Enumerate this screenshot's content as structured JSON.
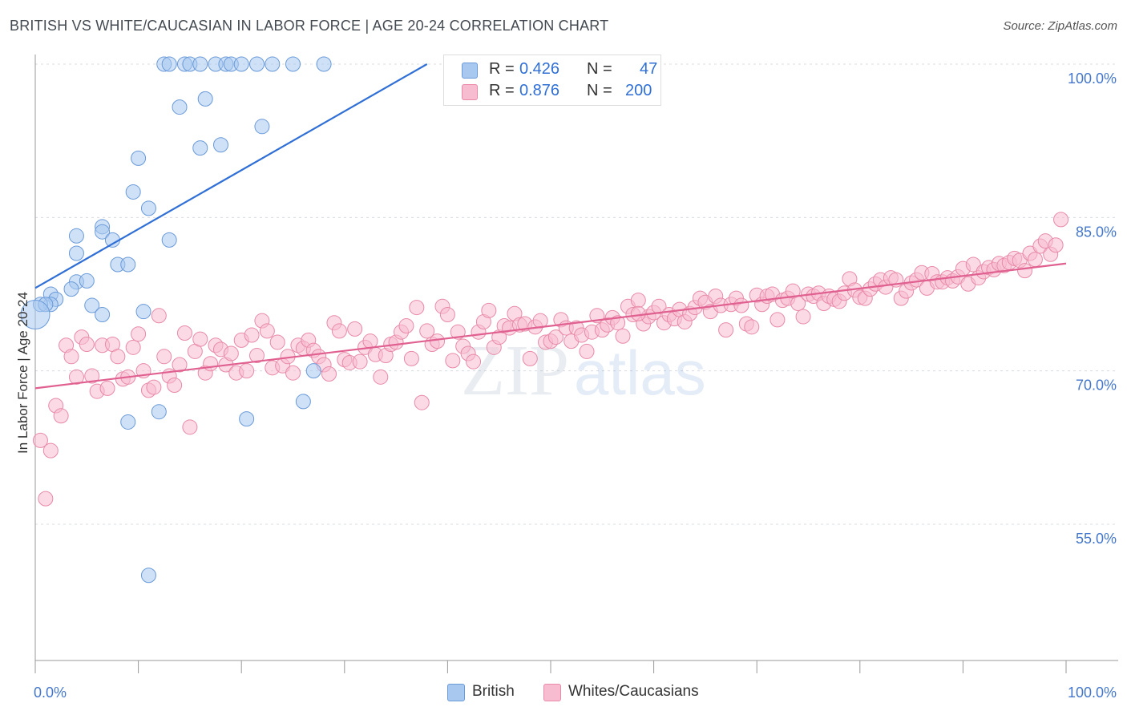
{
  "title": "BRITISH VS WHITE/CAUCASIAN IN LABOR FORCE | AGE 20-24 CORRELATION CHART",
  "source": "Source: ZipAtlas.com",
  "watermark": {
    "zip": "ZIP",
    "atlas": "atlas"
  },
  "legend": {
    "rows": [
      {
        "r_label": "R =",
        "r_value": "0.426",
        "n_label": "N =",
        "n_value": "47",
        "color": "#a8c8f0",
        "border": "#6a9ad8"
      },
      {
        "r_label": "R =",
        "r_value": "0.876",
        "n_label": "N =",
        "n_value": "200",
        "color": "#f8bcd0",
        "border": "#e88aa8"
      }
    ]
  },
  "bottom_legend": [
    {
      "label": "British",
      "color": "#a8c8f0",
      "border": "#6a9ad8"
    },
    {
      "label": "Whites/Caucasians",
      "color": "#f8bcd0",
      "border": "#e88aa8"
    }
  ],
  "chart_data": {
    "type": "scatter",
    "title": "BRITISH VS WHITE/CAUCASIAN IN LABOR FORCE | AGE 20-24 CORRELATION CHART",
    "ylabel": "In Labor Force | Age 20-24",
    "x_tick_labels": [
      "0.0%",
      "100.0%"
    ],
    "y_tick_labels": [
      "100.0%",
      "85.0%",
      "70.0%",
      "55.0%"
    ],
    "y_ticks": [
      100,
      85,
      70,
      55
    ],
    "xlim": [
      0,
      100
    ],
    "ylim": [
      41,
      102.5
    ],
    "grid": true,
    "series": [
      {
        "name": "British",
        "color": "#a8c8f0",
        "stroke": "#6a9ad8",
        "line_color": "#2f6fd6",
        "trend": {
          "x": [
            0,
            38
          ],
          "y": [
            78.1,
            100
          ]
        },
        "points": [
          [
            12.5,
            100
          ],
          [
            13,
            100
          ],
          [
            14.5,
            100
          ],
          [
            15,
            100
          ],
          [
            16,
            100
          ],
          [
            17.5,
            100
          ],
          [
            18.5,
            100
          ],
          [
            19,
            100
          ],
          [
            20,
            100
          ],
          [
            21.5,
            100
          ],
          [
            23,
            100
          ],
          [
            25,
            100
          ],
          [
            28,
            100
          ],
          [
            14,
            95.8
          ],
          [
            16.5,
            96.6
          ],
          [
            22,
            93.9
          ],
          [
            16,
            91.8
          ],
          [
            18,
            92.1
          ],
          [
            10,
            90.8
          ],
          [
            9.5,
            87.5
          ],
          [
            11,
            85.9
          ],
          [
            6.5,
            84.1
          ],
          [
            6.5,
            83.6
          ],
          [
            4,
            83.2
          ],
          [
            7.5,
            82.8
          ],
          [
            13,
            82.8
          ],
          [
            4,
            81.5
          ],
          [
            8,
            80.4
          ],
          [
            9,
            80.4
          ],
          [
            4,
            78.7
          ],
          [
            5,
            78.8
          ],
          [
            3.5,
            78
          ],
          [
            1.5,
            77.5
          ],
          [
            2,
            77
          ],
          [
            1.5,
            76.5
          ],
          [
            0.5,
            76.5
          ],
          [
            1,
            76.5
          ],
          [
            0,
            75.5
          ],
          [
            5.5,
            76.4
          ],
          [
            6.5,
            75.5
          ],
          [
            10.5,
            75.8
          ],
          [
            27,
            70
          ],
          [
            26,
            67
          ],
          [
            9,
            65
          ],
          [
            12,
            66
          ],
          [
            20.5,
            65.3
          ],
          [
            11,
            50
          ]
        ],
        "sizes": {
          "37": 18
        }
      },
      {
        "name": "Whites/Caucasians",
        "color": "#f8bcd0",
        "stroke": "#e88aa8",
        "line_color": "#e06090",
        "trend": {
          "x": [
            0,
            100
          ],
          "y": [
            68.3,
            80.5
          ]
        },
        "points": [
          [
            0.5,
            63.2
          ],
          [
            1.5,
            62.2
          ],
          [
            1,
            57.5
          ],
          [
            2,
            66.6
          ],
          [
            2.5,
            65.6
          ],
          [
            3,
            72.5
          ],
          [
            3.5,
            71.4
          ],
          [
            4,
            69.4
          ],
          [
            4.5,
            73.3
          ],
          [
            5,
            72.6
          ],
          [
            5.5,
            69.5
          ],
          [
            6,
            68
          ],
          [
            6.5,
            72.5
          ],
          [
            7,
            68.3
          ],
          [
            7.5,
            72.6
          ],
          [
            8,
            71.4
          ],
          [
            8.5,
            69.2
          ],
          [
            9,
            69.4
          ],
          [
            9.5,
            72.3
          ],
          [
            10,
            73.6
          ],
          [
            10.5,
            70
          ],
          [
            11,
            68.1
          ],
          [
            11.5,
            68.4
          ],
          [
            12,
            75.4
          ],
          [
            12.5,
            71.4
          ],
          [
            13,
            69.5
          ],
          [
            13.5,
            68.6
          ],
          [
            14,
            70.6
          ],
          [
            14.5,
            73.7
          ],
          [
            15,
            64.5
          ],
          [
            15.5,
            71.9
          ],
          [
            16,
            73.1
          ],
          [
            16.5,
            69.8
          ],
          [
            17,
            70.7
          ],
          [
            17.5,
            72.5
          ],
          [
            18,
            72.1
          ],
          [
            18.5,
            70.6
          ],
          [
            19,
            71.7
          ],
          [
            19.5,
            69.8
          ],
          [
            20,
            73
          ],
          [
            20.5,
            70
          ],
          [
            21,
            73.5
          ],
          [
            21.5,
            71.5
          ],
          [
            22,
            74.9
          ],
          [
            22.5,
            73.9
          ],
          [
            23,
            70.3
          ],
          [
            23.5,
            72.8
          ],
          [
            24,
            70.5
          ],
          [
            24.5,
            71.4
          ],
          [
            25,
            69.8
          ],
          [
            25.5,
            72.5
          ],
          [
            26,
            72.2
          ],
          [
            26.5,
            73
          ],
          [
            27,
            72
          ],
          [
            27.5,
            71.4
          ],
          [
            28,
            70.6
          ],
          [
            28.5,
            69.7
          ],
          [
            29,
            74.7
          ],
          [
            29.5,
            73.9
          ],
          [
            30,
            71.1
          ],
          [
            30.5,
            70.8
          ],
          [
            31,
            74.1
          ],
          [
            31.5,
            70.9
          ],
          [
            32,
            72.3
          ],
          [
            32.5,
            72.9
          ],
          [
            33,
            71.6
          ],
          [
            33.5,
            69.4
          ],
          [
            34,
            71.5
          ],
          [
            34.5,
            72.6
          ],
          [
            35,
            72.8
          ],
          [
            35.5,
            73.8
          ],
          [
            36,
            74.4
          ],
          [
            36.5,
            71.2
          ],
          [
            37,
            76.2
          ],
          [
            37.5,
            66.9
          ],
          [
            38,
            73.9
          ],
          [
            38.5,
            72.6
          ],
          [
            39,
            72.9
          ],
          [
            39.5,
            76.3
          ],
          [
            40,
            75.5
          ],
          [
            40.5,
            71
          ],
          [
            41,
            73.8
          ],
          [
            41.5,
            72.4
          ],
          [
            42,
            71.7
          ],
          [
            42.5,
            70.9
          ],
          [
            43,
            73.8
          ],
          [
            43.5,
            74.8
          ],
          [
            44,
            75.9
          ],
          [
            44.5,
            72.3
          ],
          [
            45,
            73.3
          ],
          [
            45.5,
            74.4
          ],
          [
            46,
            74.2
          ],
          [
            46.5,
            75.6
          ],
          [
            47,
            74.5
          ],
          [
            47.5,
            74.6
          ],
          [
            48,
            71.2
          ],
          [
            48.5,
            74.3
          ],
          [
            49,
            74.9
          ],
          [
            49.5,
            72.8
          ],
          [
            50,
            72.9
          ],
          [
            50.5,
            73.3
          ],
          [
            51,
            75
          ],
          [
            51.5,
            74.2
          ],
          [
            52,
            72.9
          ],
          [
            52.5,
            74.2
          ],
          [
            53,
            73.5
          ],
          [
            53.5,
            71.9
          ],
          [
            54,
            73.8
          ],
          [
            54.5,
            75.4
          ],
          [
            55,
            74
          ],
          [
            55.5,
            74.5
          ],
          [
            56,
            75.2
          ],
          [
            56.5,
            74.7
          ],
          [
            57,
            73.4
          ],
          [
            57.5,
            76.3
          ],
          [
            58,
            75.5
          ],
          [
            58.5,
            76.9
          ],
          [
            59,
            74.6
          ],
          [
            59.5,
            75.3
          ],
          [
            60,
            75.7
          ],
          [
            60.5,
            76.3
          ],
          [
            61,
            74.7
          ],
          [
            61.5,
            75.5
          ],
          [
            62,
            75.1
          ],
          [
            62.5,
            76
          ],
          [
            63,
            74.8
          ],
          [
            63.5,
            75.6
          ],
          [
            64,
            76.2
          ],
          [
            64.5,
            77.1
          ],
          [
            65,
            76.7
          ],
          [
            65.5,
            75.8
          ],
          [
            66,
            77.3
          ],
          [
            66.5,
            76.4
          ],
          [
            67,
            74
          ],
          [
            67.5,
            76.5
          ],
          [
            68,
            77.1
          ],
          [
            68.5,
            76.4
          ],
          [
            69,
            74.6
          ],
          [
            69.5,
            74.3
          ],
          [
            70,
            77.4
          ],
          [
            70.5,
            76.5
          ],
          [
            71,
            77.3
          ],
          [
            71.5,
            77.5
          ],
          [
            72,
            75
          ],
          [
            72.5,
            76.9
          ],
          [
            73,
            77.1
          ],
          [
            73.5,
            77.8
          ],
          [
            74,
            76.6
          ],
          [
            74.5,
            75.3
          ],
          [
            75,
            77.5
          ],
          [
            75.5,
            77.3
          ],
          [
            76,
            77.6
          ],
          [
            76.5,
            76.6
          ],
          [
            77,
            77.3
          ],
          [
            77.5,
            77
          ],
          [
            78,
            76.8
          ],
          [
            78.5,
            77.6
          ],
          [
            79,
            79
          ],
          [
            79.5,
            77.9
          ],
          [
            80,
            77.2
          ],
          [
            80.5,
            77.1
          ],
          [
            81,
            78
          ],
          [
            81.5,
            78.5
          ],
          [
            82,
            78.9
          ],
          [
            82.5,
            78.2
          ],
          [
            83,
            79.1
          ],
          [
            83.5,
            78.9
          ],
          [
            84,
            77.1
          ],
          [
            84.5,
            77.8
          ],
          [
            85,
            78.6
          ],
          [
            85.5,
            78.9
          ],
          [
            86,
            79.6
          ],
          [
            86.5,
            78.1
          ],
          [
            87,
            79.5
          ],
          [
            87.5,
            78.7
          ],
          [
            88,
            78.7
          ],
          [
            88.5,
            79.1
          ],
          [
            89,
            78.8
          ],
          [
            89.5,
            79.2
          ],
          [
            90,
            80
          ],
          [
            90.5,
            78.5
          ],
          [
            91,
            80.4
          ],
          [
            91.5,
            79.1
          ],
          [
            92,
            79.7
          ],
          [
            92.5,
            80.1
          ],
          [
            93,
            79.9
          ],
          [
            93.5,
            80.5
          ],
          [
            94,
            80.3
          ],
          [
            94.5,
            80.6
          ],
          [
            95,
            81
          ],
          [
            95.5,
            80.8
          ],
          [
            96,
            79.8
          ],
          [
            96.5,
            81.5
          ],
          [
            97,
            80.9
          ],
          [
            97.5,
            82.2
          ],
          [
            98,
            82.7
          ],
          [
            98.5,
            81.4
          ],
          [
            99,
            82.3
          ],
          [
            99.5,
            84.8
          ],
          [
            58.5,
            75.6
          ]
        ]
      }
    ]
  }
}
